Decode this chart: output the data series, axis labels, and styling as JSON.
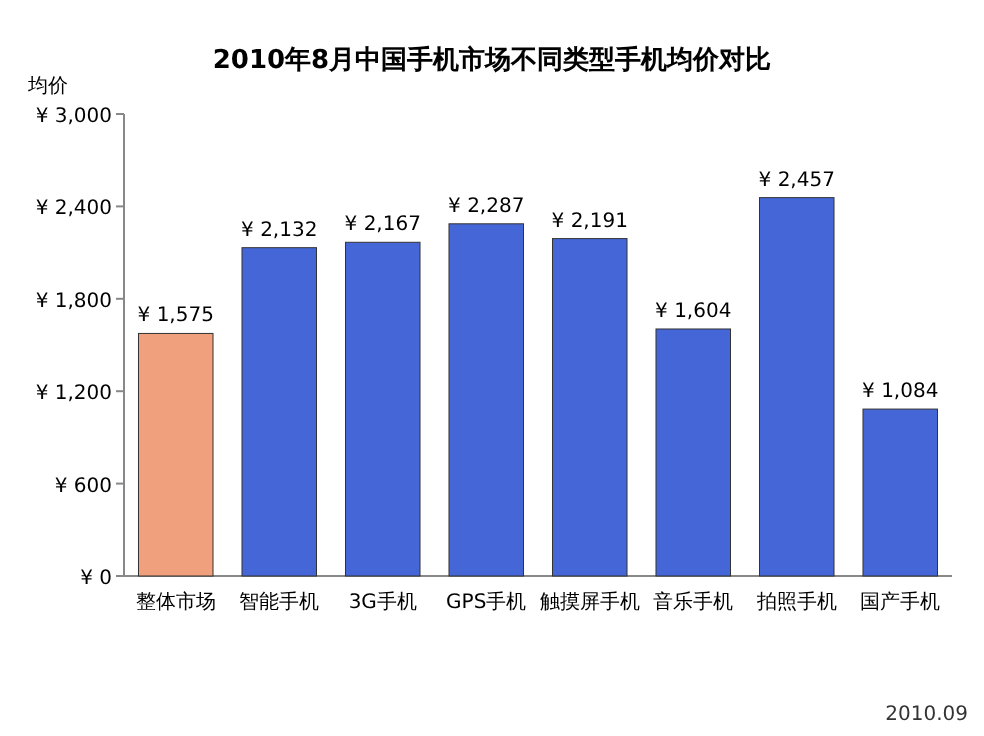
{
  "chart_data": {
    "type": "bar",
    "title": "2010年8月中国手机市场不同类型手机均价对比",
    "ylabel": "均价",
    "categories": [
      "整体市场",
      "智能手机",
      "3G手机",
      "GPS手机",
      "触摸屏手机",
      "音乐手机",
      "拍照手机",
      "国产手机"
    ],
    "values": [
      1575,
      2132,
      2167,
      2287,
      2191,
      1604,
      2457,
      1084
    ],
    "colors": [
      "#f0a07c",
      "#4566d6",
      "#4566d6",
      "#4566d6",
      "#4566d6",
      "#4566d6",
      "#4566d6",
      "#4566d6"
    ],
    "value_labels": [
      "¥ 1,575",
      "¥ 2,132",
      "¥ 2,167",
      "¥ 2,287",
      "¥ 2,191",
      "¥ 1,604",
      "¥ 2,457",
      "¥ 1,084"
    ],
    "ylim": [
      0,
      3000
    ],
    "yticks": [
      {
        "value": 0,
        "label": "¥ 0"
      },
      {
        "value": 600,
        "label": "¥ 600"
      },
      {
        "value": 1200,
        "label": "¥ 1,200"
      },
      {
        "value": 1800,
        "label": "¥ 1,800"
      },
      {
        "value": 2400,
        "label": "¥ 2,400"
      },
      {
        "value": 3000,
        "label": "¥ 3,000"
      }
    ],
    "annotations": [
      "2010.09"
    ]
  }
}
